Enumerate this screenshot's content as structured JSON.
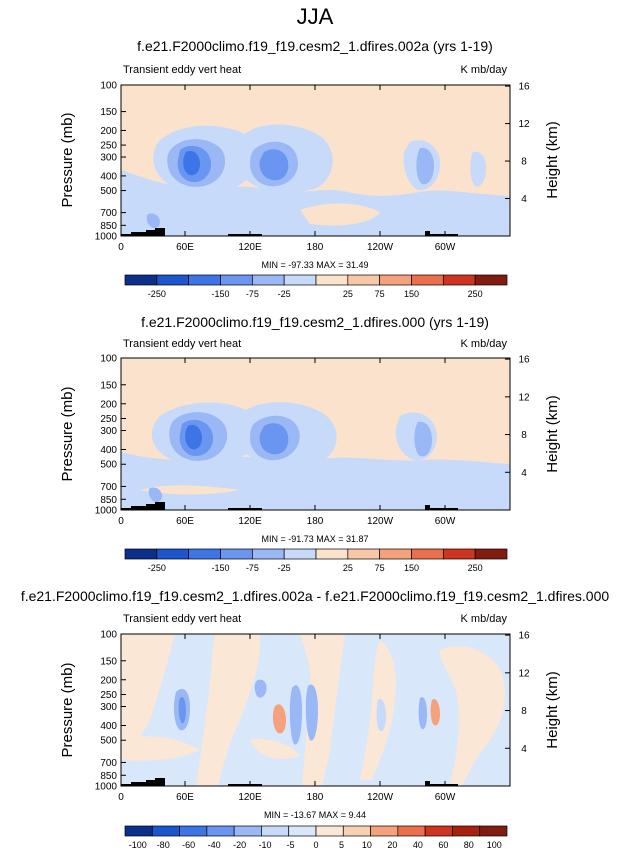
{
  "figure": {
    "title": "JJA",
    "palette_6": [
      "#0b2f8a",
      "#1d55cf",
      "#3d74e6",
      "#6a95f0",
      "#9ab8f5",
      "#c8daf9",
      "#fbe2cd",
      "#f8c8a6",
      "#f5a27c",
      "#ec6f4d",
      "#cf3420",
      "#811c0f"
    ],
    "palette_diff": [
      "#0b2f8a",
      "#1d55cf",
      "#3d74e6",
      "#6a95f0",
      "#9ab8f5",
      "#c8daf9",
      "#d9e7fb",
      "#fbe7d6",
      "#f8d0b2",
      "#f5a27c",
      "#ec6f4d",
      "#cf3420",
      "#a82010",
      "#811c0f"
    ]
  },
  "panels": [
    {
      "title": "f.e21.F2000climo.f19_f19.cesm2_1.dfires.002a (yrs 1-19)",
      "left_label": "Transient eddy vert heat",
      "right_label": "K mb/day",
      "minmax": "MIN = -97.33  MAX = 31.49",
      "colorbar_labels": [
        "-250",
        "-150",
        "-75",
        "-25",
        "25",
        "75",
        "150",
        "250"
      ]
    },
    {
      "title": "f.e21.F2000climo.f19_f19.cesm2_1.dfires.000 (yrs 1-19)",
      "left_label": "Transient eddy vert heat",
      "right_label": "K mb/day",
      "minmax": "MIN = -91.73  MAX = 31.87",
      "colorbar_labels": [
        "-250",
        "-150",
        "-75",
        "-25",
        "25",
        "75",
        "150",
        "250"
      ]
    },
    {
      "title": "f.e21.F2000climo.f19_f19.cesm2_1.dfires.002a - f.e21.F2000climo.f19_f19.cesm2_1.dfires.000",
      "left_label": "Transient eddy vert heat",
      "right_label": "K mb/day",
      "minmax": "MIN = -13.67  MAX = 9.44",
      "colorbar_labels": [
        "-100",
        "-80",
        "-60",
        "-40",
        "-20",
        "-10",
        "-5",
        "0",
        "5",
        "10",
        "20",
        "40",
        "60",
        "80",
        "100"
      ]
    }
  ],
  "chart_data": [
    {
      "type": "heatmap",
      "title": "f.e21.F2000climo.f19_f19.cesm2_1.dfires.002a (yrs 1-19)",
      "xlabel": "",
      "ylabel": "Pressure (mb)",
      "y2label": "Height (km)",
      "units": "K mb/day",
      "x_ticks": [
        "0",
        "60E",
        "120E",
        "180",
        "120W",
        "60W"
      ],
      "y_ticks": [
        "100",
        "150",
        "200",
        "250",
        "300",
        "400",
        "500",
        "700",
        "850",
        "1000"
      ],
      "y2_ticks": [
        "4",
        "8",
        "12",
        "16"
      ],
      "xlim": [
        0,
        360
      ],
      "ylim": [
        1000,
        100
      ],
      "y_scale": "log",
      "levels": [
        -250,
        -150,
        -75,
        -25,
        25,
        75,
        150,
        250
      ],
      "min": -97.33,
      "max": 31.49
    },
    {
      "type": "heatmap",
      "title": "f.e21.F2000climo.f19_f19.cesm2_1.dfires.000 (yrs 1-19)",
      "xlabel": "",
      "ylabel": "Pressure (mb)",
      "y2label": "Height (km)",
      "units": "K mb/day",
      "x_ticks": [
        "0",
        "60E",
        "120E",
        "180",
        "120W",
        "60W"
      ],
      "y_ticks": [
        "100",
        "150",
        "200",
        "250",
        "300",
        "400",
        "500",
        "700",
        "850",
        "1000"
      ],
      "y2_ticks": [
        "4",
        "8",
        "12",
        "16"
      ],
      "xlim": [
        0,
        360
      ],
      "ylim": [
        1000,
        100
      ],
      "y_scale": "log",
      "levels": [
        -250,
        -150,
        -75,
        -25,
        25,
        75,
        150,
        250
      ],
      "min": -91.73,
      "max": 31.87
    },
    {
      "type": "heatmap",
      "title": "f.e21.F2000climo.f19_f19.cesm2_1.dfires.002a - f.e21.F2000climo.f19_f19.cesm2_1.dfires.000",
      "xlabel": "",
      "ylabel": "Pressure (mb)",
      "y2label": "Height (km)",
      "units": "K mb/day",
      "x_ticks": [
        "0",
        "60E",
        "120E",
        "180",
        "120W",
        "60W"
      ],
      "y_ticks": [
        "100",
        "150",
        "200",
        "250",
        "300",
        "400",
        "500",
        "700",
        "850",
        "1000"
      ],
      "y2_ticks": [
        "4",
        "8",
        "12",
        "16"
      ],
      "xlim": [
        0,
        360
      ],
      "ylim": [
        1000,
        100
      ],
      "y_scale": "log",
      "levels": [
        -100,
        -80,
        -60,
        -40,
        -20,
        -10,
        -5,
        0,
        5,
        10,
        20,
        40,
        60,
        80,
        100
      ],
      "min": -13.67,
      "max": 9.44
    }
  ]
}
